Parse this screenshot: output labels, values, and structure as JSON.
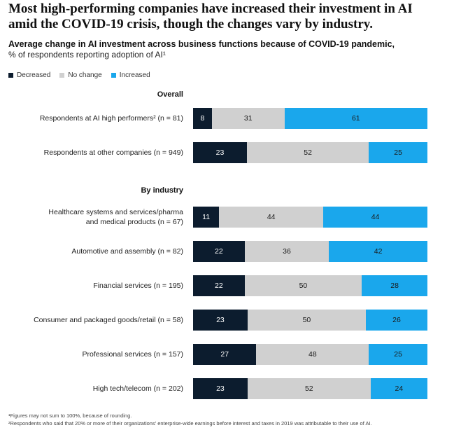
{
  "title": "Most high-performing companies have increased their investment in AI amid the COVID-19 crisis, though the changes vary by industry.",
  "subtitle": "Average change in AI investment across business functions because of COVID-19 pandemic,",
  "subtitle_line2": "% of respondents reporting adoption of AI¹",
  "legend": [
    {
      "label": "Decreased",
      "color": "#0c1c2e"
    },
    {
      "label": "No change",
      "color": "#d0d0d0"
    },
    {
      "label": "Increased",
      "color": "#1aa7ec"
    }
  ],
  "footnotes": [
    "¹Figures may not sum to 100%, because of rounding.",
    "²Respondents who said that 20% or more of their organizations' enterprise-wide earnings before interest and taxes in 2019 was attributable to their use of AI."
  ],
  "chart_data": {
    "type": "bar",
    "orientation": "horizontal",
    "stacked": true,
    "title": "Average change in AI investment across business functions because of COVID-19 pandemic,",
    "xlim": [
      0,
      100
    ],
    "series_names": [
      "Decreased",
      "No change",
      "Increased"
    ],
    "colors": [
      "#0c1c2e",
      "#d0d0d0",
      "#1aa7ec"
    ],
    "sections": [
      {
        "heading": "Overall",
        "rows": [
          {
            "label_lines": [
              "Respondents at AI high performers² (n = 81)"
            ],
            "values": [
              8,
              31,
              61
            ]
          },
          {
            "label_lines": [
              "Respondents at other companies (n = 949)"
            ],
            "values": [
              23,
              52,
              25
            ]
          }
        ]
      },
      {
        "heading": "By industry",
        "rows": [
          {
            "label_lines": [
              "Healthcare systems and services/pharma",
              "and medical products (n = 67)"
            ],
            "values": [
              11,
              44,
              44
            ]
          },
          {
            "label_lines": [
              "Automotive and assembly (n = 82)"
            ],
            "values": [
              22,
              36,
              42
            ]
          },
          {
            "label_lines": [
              "Financial services (n = 195)"
            ],
            "values": [
              22,
              50,
              28
            ]
          },
          {
            "label_lines": [
              "Consumer and packaged goods/retail (n = 58)"
            ],
            "values": [
              23,
              50,
              26
            ]
          },
          {
            "label_lines": [
              "Professional services (n = 157)"
            ],
            "values": [
              27,
              48,
              25
            ]
          },
          {
            "label_lines": [
              "High tech/telecom (n = 202)"
            ],
            "values": [
              23,
              52,
              24
            ]
          }
        ]
      }
    ]
  }
}
